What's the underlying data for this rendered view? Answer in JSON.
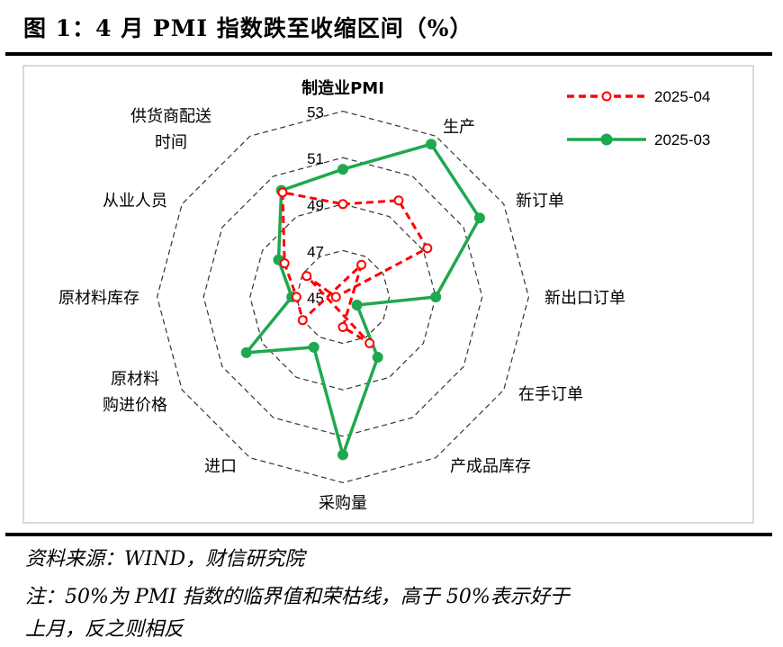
{
  "title": "图 1：4 月 PMI 指数跌至收缩区间（%）",
  "source": "资料来源：WIND，财信研究院",
  "note_line1": "注：50%为 PMI 指数的临界值和荣枯线，高于 50%表示好于",
  "note_line2": "上月，反之则相反",
  "chart_data": {
    "type": "radar",
    "axes": [
      "制造业PMI",
      "生产",
      "新订单",
      "新出口订单",
      "在手订单",
      "产成品库存",
      "采购量",
      "进口",
      "原材料购进价格",
      "原材料库存",
      "从业人员",
      "供货商配送时间"
    ],
    "axis_label_lines": [
      [
        "制造业PMI"
      ],
      [
        "生产"
      ],
      [
        "新订单"
      ],
      [
        "新出口订单"
      ],
      [
        "在手订单"
      ],
      [
        "产成品库存"
      ],
      [
        "采购量"
      ],
      [
        "进口"
      ],
      [
        "原材料",
        "购进价格"
      ],
      [
        "原材料库存"
      ],
      [
        "从业人员"
      ],
      [
        "供货商配送",
        "时间"
      ]
    ],
    "rmin": 45,
    "rmax": 53,
    "ticks": [
      "45",
      "47",
      "49",
      "51",
      "53"
    ],
    "legend_position": "top-right",
    "series": [
      {
        "name": "2025-04",
        "color": "#ff0000",
        "style": "dashed",
        "marker": "open-circle",
        "values": [
          49.0,
          49.8,
          49.2,
          44.7,
          43.2,
          47.3,
          46.3,
          43.4,
          47.0,
          47.0,
          47.9,
          50.2
        ]
      },
      {
        "name": "2025-03",
        "color": "#1fa84f",
        "style": "solid",
        "marker": "filled-circle",
        "values": [
          50.5,
          52.6,
          51.8,
          49.0,
          45.7,
          48.0,
          51.8,
          47.5,
          49.8,
          47.2,
          48.2,
          50.3
        ]
      }
    ]
  }
}
